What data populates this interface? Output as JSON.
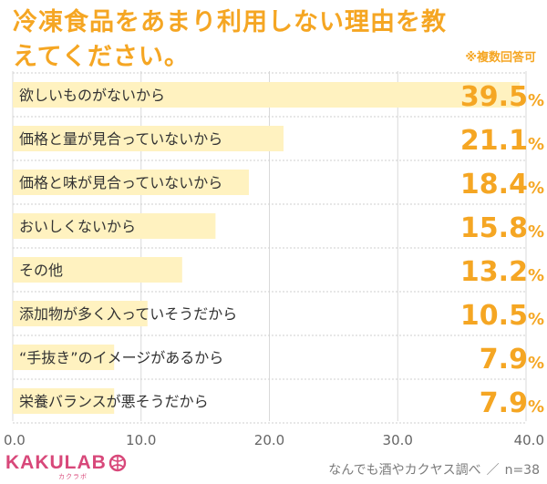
{
  "title": "冷凍食品をあまり利用しない理由を教えてください。",
  "note": "※複数回答可",
  "footer": {
    "logo_text": "KAKULAB",
    "logo_sub": "カクラボ",
    "source": "なんでも酒やカクヤス調べ",
    "n": "n=38"
  },
  "colors": {
    "accent": "#f5a623",
    "bar": "#fff2c0",
    "logo": "#d8487a"
  },
  "chart_data": {
    "type": "bar",
    "orientation": "horizontal",
    "categories": [
      "欲しいものがないから",
      "価格と量が見合っていないから",
      "価格と味が見合っていないから",
      "おいしくないから",
      "その他",
      "添加物が多く入っていそうだから",
      "“手抜き”のイメージがあるから",
      "栄養バランスが悪そうだから"
    ],
    "values": [
      39.5,
      21.1,
      18.4,
      15.8,
      13.2,
      10.5,
      7.9,
      7.9
    ],
    "value_suffix": "%",
    "xlim": [
      0,
      40
    ],
    "xticks": [
      "0.0",
      "10.0",
      "20.0",
      "30.0",
      "40.0"
    ],
    "grid": true
  }
}
